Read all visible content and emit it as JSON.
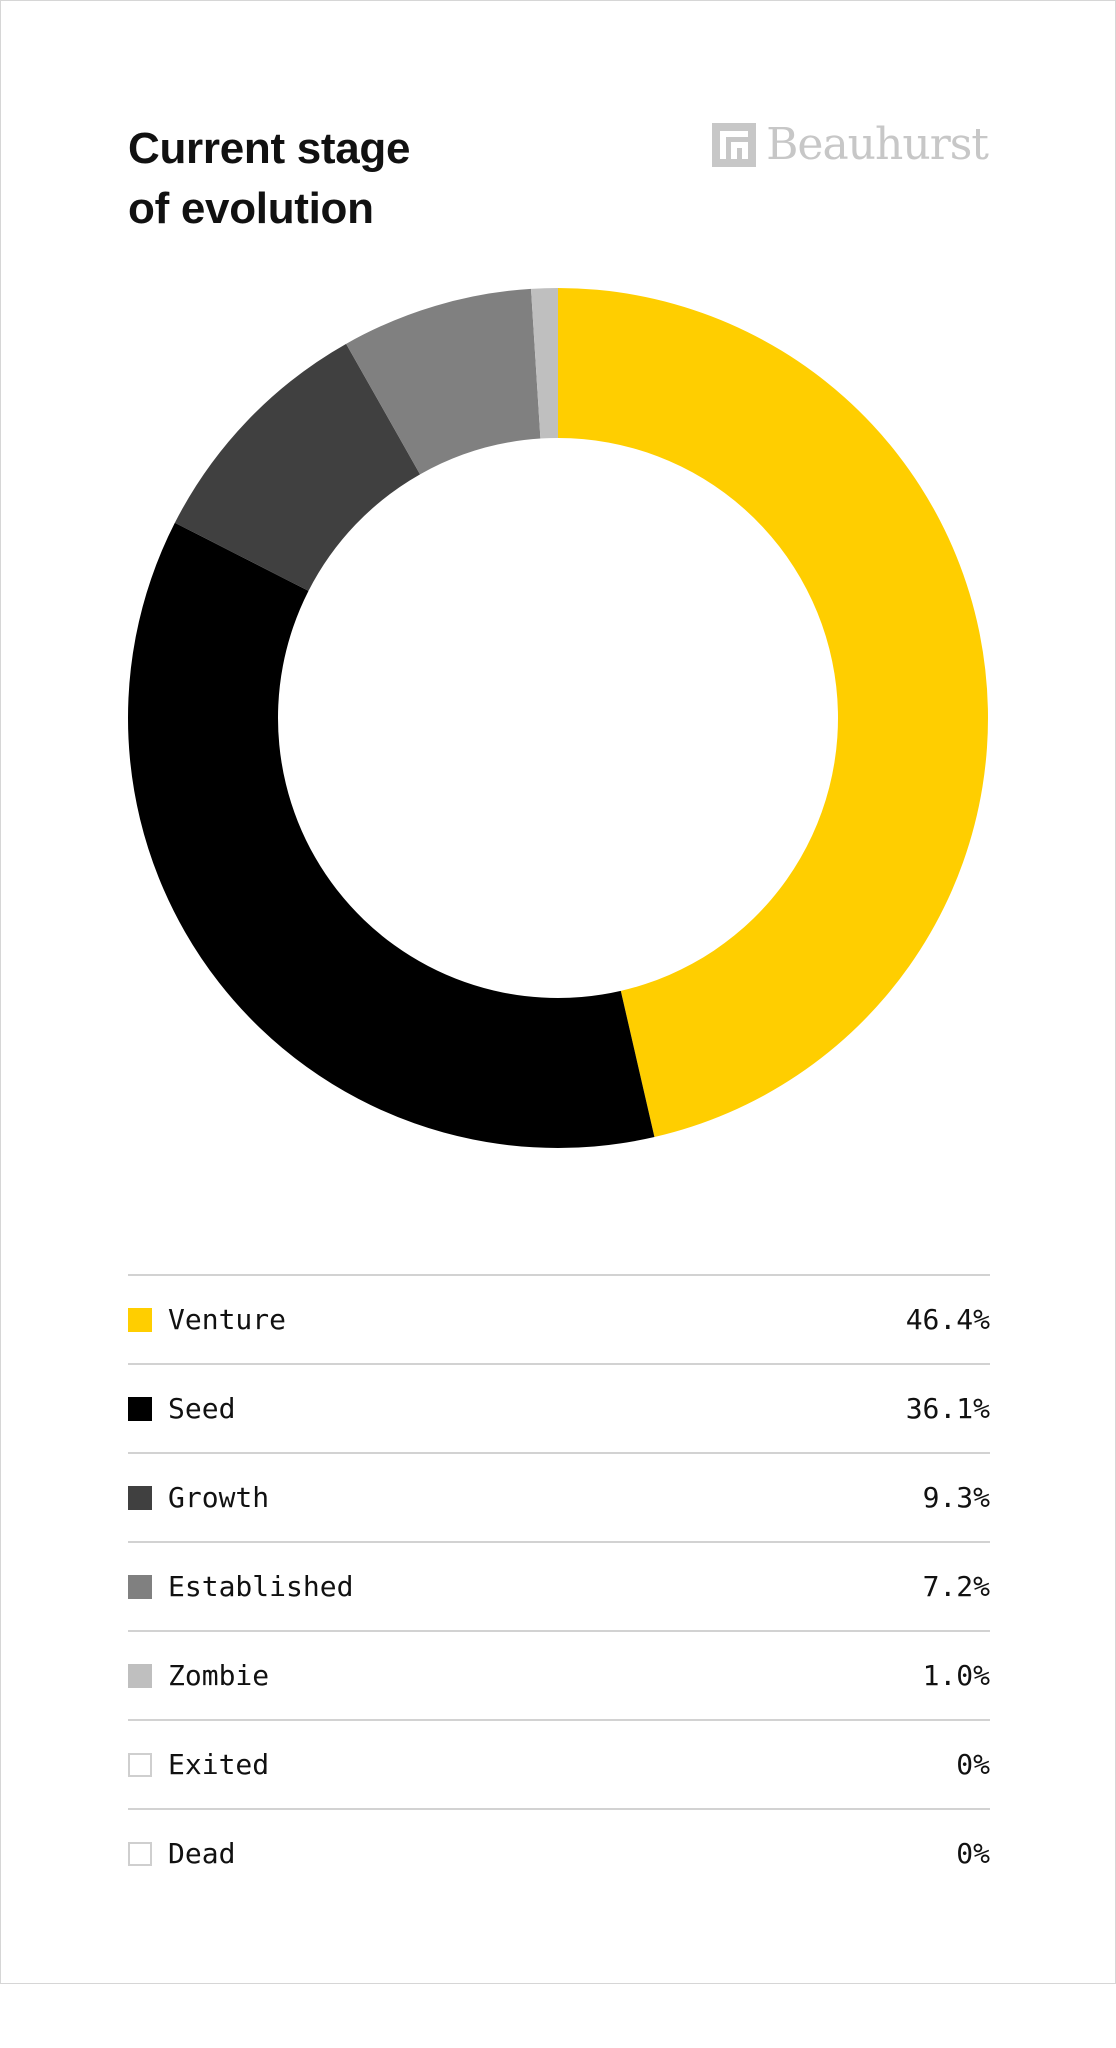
{
  "header": {
    "title_line1": "Current stage",
    "title_line2": "of evolution",
    "brand_name": "Beauhurst"
  },
  "colors": {
    "venture": "#ffce00",
    "seed": "#000000",
    "growth": "#404040",
    "established": "#808080",
    "zombie": "#bfbfbf",
    "exited": "#ffffff",
    "dead": "#ffffff",
    "divider": "#d2d2d2",
    "brand": "#c7c7c7"
  },
  "chart_data": {
    "type": "pie",
    "donut": true,
    "categories": [
      "Venture",
      "Seed",
      "Growth",
      "Established",
      "Zombie",
      "Exited",
      "Dead"
    ],
    "values": [
      46.4,
      36.1,
      9.3,
      7.2,
      1.0,
      0,
      0
    ],
    "labels": [
      "46.4%",
      "36.1%",
      "9.3%",
      "7.2%",
      "1.0%",
      "0%",
      "0%"
    ],
    "colors": [
      "#ffce00",
      "#000000",
      "#404040",
      "#808080",
      "#bfbfbf",
      "#ffffff",
      "#ffffff"
    ],
    "legend": "bottom"
  }
}
